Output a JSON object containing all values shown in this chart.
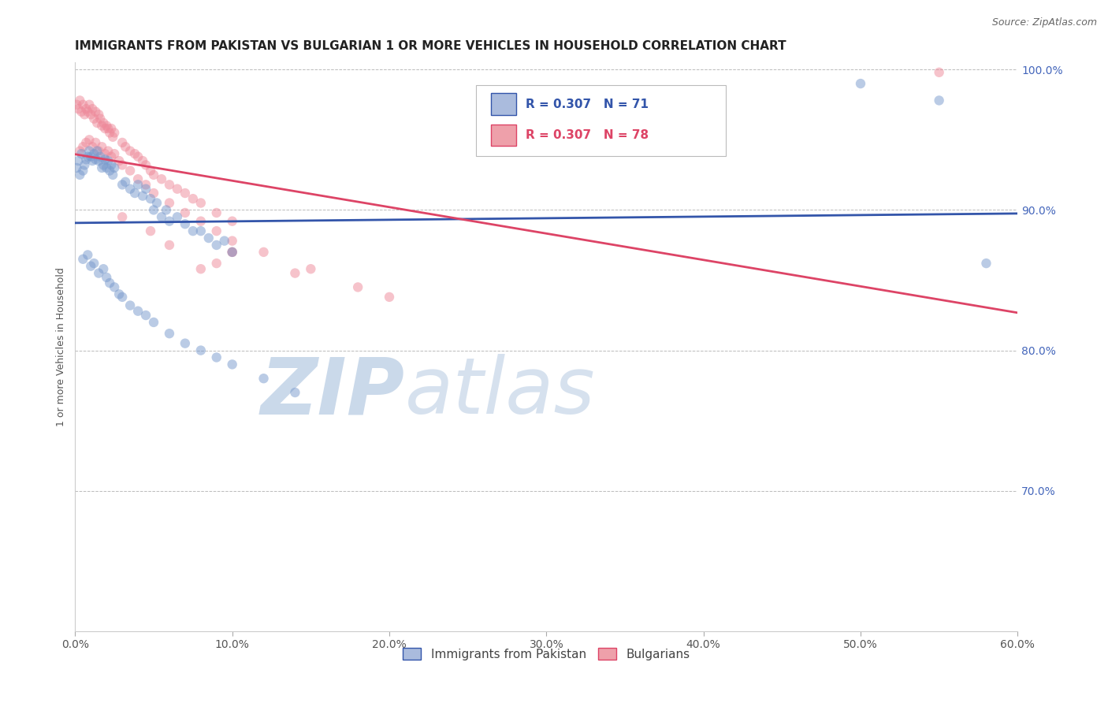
{
  "title": "IMMIGRANTS FROM PAKISTAN VS BULGARIAN 1 OR MORE VEHICLES IN HOUSEHOLD CORRELATION CHART",
  "source": "Source: ZipAtlas.com",
  "ylabel": "1 or more Vehicles in Household",
  "xlim": [
    0.0,
    0.6
  ],
  "ylim": [
    0.6,
    1.005
  ],
  "xticks": [
    0.0,
    0.1,
    0.2,
    0.3,
    0.4,
    0.5,
    0.6
  ],
  "yticks": [
    0.7,
    0.8,
    0.9,
    1.0
  ],
  "background_color": "#ffffff",
  "grid_color": "#bbbbbb",
  "trendline_blue_color": "#3355aa",
  "trendline_pink_color": "#dd4466",
  "watermark_zip_color": "#c5d5e8",
  "watermark_atlas_color": "#c5d5e8",
  "title_fontsize": 11,
  "axis_label_fontsize": 9,
  "tick_fontsize": 10,
  "legend_fontsize": 11,
  "source_fontsize": 9,
  "pakistan": {
    "label": "Immigrants from Pakistan",
    "R": 0.307,
    "N": 71,
    "color": "#7799cc",
    "alpha": 0.5,
    "marker_size": 80,
    "x": [
      0.001,
      0.002,
      0.003,
      0.004,
      0.005,
      0.006,
      0.007,
      0.008,
      0.009,
      0.01,
      0.011,
      0.012,
      0.013,
      0.014,
      0.015,
      0.016,
      0.017,
      0.018,
      0.019,
      0.02,
      0.021,
      0.022,
      0.023,
      0.024,
      0.025,
      0.03,
      0.032,
      0.035,
      0.038,
      0.04,
      0.043,
      0.045,
      0.048,
      0.05,
      0.052,
      0.055,
      0.058,
      0.06,
      0.065,
      0.07,
      0.075,
      0.08,
      0.085,
      0.09,
      0.095,
      0.1,
      0.005,
      0.008,
      0.01,
      0.012,
      0.015,
      0.018,
      0.02,
      0.022,
      0.025,
      0.028,
      0.03,
      0.035,
      0.04,
      0.045,
      0.05,
      0.06,
      0.07,
      0.08,
      0.09,
      0.1,
      0.12,
      0.14,
      0.5,
      0.55,
      0.58
    ],
    "y": [
      0.93,
      0.935,
      0.925,
      0.94,
      0.928,
      0.932,
      0.936,
      0.938,
      0.942,
      0.938,
      0.935,
      0.94,
      0.936,
      0.942,
      0.935,
      0.938,
      0.93,
      0.932,
      0.936,
      0.93,
      0.935,
      0.928,
      0.932,
      0.925,
      0.93,
      0.918,
      0.92,
      0.915,
      0.912,
      0.918,
      0.91,
      0.915,
      0.908,
      0.9,
      0.905,
      0.895,
      0.9,
      0.892,
      0.895,
      0.89,
      0.885,
      0.885,
      0.88,
      0.875,
      0.878,
      0.87,
      0.865,
      0.868,
      0.86,
      0.862,
      0.855,
      0.858,
      0.852,
      0.848,
      0.845,
      0.84,
      0.838,
      0.832,
      0.828,
      0.825,
      0.82,
      0.812,
      0.805,
      0.8,
      0.795,
      0.79,
      0.78,
      0.77,
      0.99,
      0.978,
      0.862
    ]
  },
  "bulgarians": {
    "label": "Bulgarians",
    "R": 0.307,
    "N": 78,
    "color": "#ee8899",
    "alpha": 0.5,
    "marker_size": 80,
    "x": [
      0.001,
      0.002,
      0.003,
      0.004,
      0.005,
      0.006,
      0.007,
      0.008,
      0.009,
      0.01,
      0.011,
      0.012,
      0.013,
      0.014,
      0.015,
      0.016,
      0.017,
      0.018,
      0.019,
      0.02,
      0.021,
      0.022,
      0.023,
      0.024,
      0.025,
      0.03,
      0.032,
      0.035,
      0.038,
      0.04,
      0.043,
      0.045,
      0.048,
      0.05,
      0.055,
      0.06,
      0.065,
      0.07,
      0.075,
      0.08,
      0.09,
      0.1,
      0.003,
      0.005,
      0.007,
      0.009,
      0.011,
      0.013,
      0.015,
      0.017,
      0.019,
      0.021,
      0.023,
      0.025,
      0.028,
      0.03,
      0.035,
      0.04,
      0.045,
      0.05,
      0.06,
      0.07,
      0.08,
      0.09,
      0.1,
      0.12,
      0.15,
      0.18,
      0.14,
      0.09,
      0.1,
      0.2,
      0.03,
      0.55,
      0.048,
      0.06,
      0.08,
      0.1
    ],
    "y": [
      0.975,
      0.972,
      0.978,
      0.97,
      0.975,
      0.968,
      0.972,
      0.97,
      0.975,
      0.968,
      0.972,
      0.965,
      0.97,
      0.962,
      0.968,
      0.965,
      0.96,
      0.962,
      0.958,
      0.96,
      0.958,
      0.955,
      0.958,
      0.952,
      0.955,
      0.948,
      0.945,
      0.942,
      0.94,
      0.938,
      0.935,
      0.932,
      0.928,
      0.925,
      0.922,
      0.918,
      0.915,
      0.912,
      0.908,
      0.905,
      0.898,
      0.892,
      0.942,
      0.945,
      0.948,
      0.95,
      0.945,
      0.948,
      0.942,
      0.945,
      0.94,
      0.942,
      0.938,
      0.94,
      0.935,
      0.932,
      0.928,
      0.922,
      0.918,
      0.912,
      0.905,
      0.898,
      0.892,
      0.885,
      0.878,
      0.87,
      0.858,
      0.845,
      0.855,
      0.862,
      0.87,
      0.838,
      0.895,
      0.998,
      0.885,
      0.875,
      0.858,
      0.87
    ]
  }
}
